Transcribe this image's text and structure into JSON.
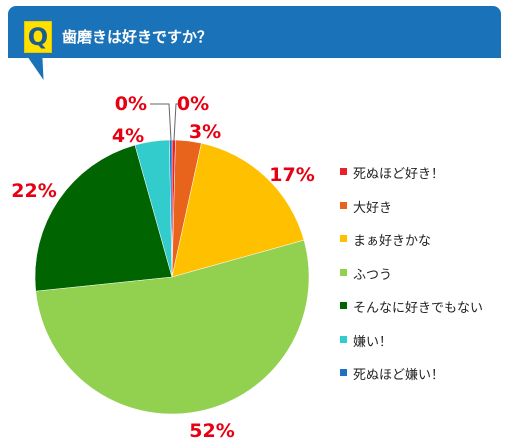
{
  "header": {
    "badge": "Q",
    "question": "歯磨きは好きですか？"
  },
  "chart_data": {
    "type": "pie",
    "categories": [
      "死ぬほど好き！",
      "大好き",
      "まぁ好きかな",
      "ふつう",
      "そんなに好きでもない",
      "嫌い！",
      "死ぬほど嫌い！"
    ],
    "values": [
      0.4,
      3,
      17,
      52,
      22,
      4,
      0.3
    ],
    "labels": [
      "0%",
      "3%",
      "17%",
      "52%",
      "22%",
      "4%",
      "0%"
    ],
    "colors": [
      "#e8202a",
      "#e8641c",
      "#ffc000",
      "#92d050",
      "#006400",
      "#33cccc",
      "#1f6fc5"
    ],
    "legend_position": "right",
    "title": "",
    "xlabel": "",
    "ylabel": ""
  }
}
